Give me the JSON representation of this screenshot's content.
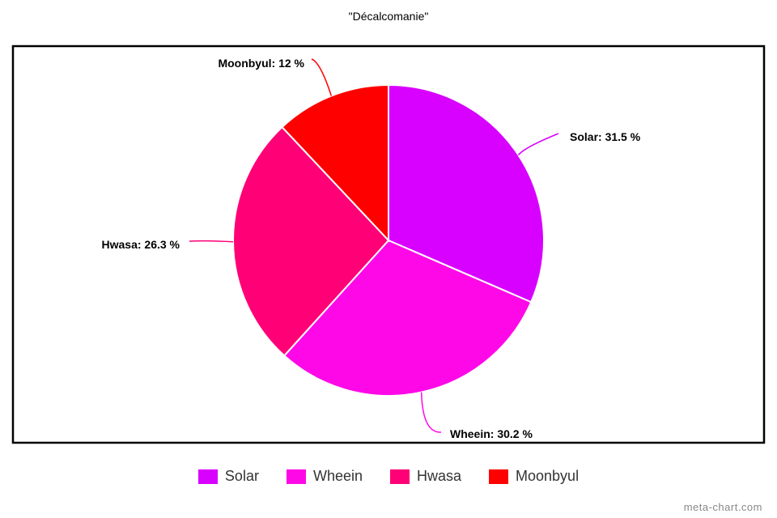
{
  "chart_data": {
    "type": "pie",
    "title": "\"Décalcomanie\"",
    "slices": [
      {
        "name": "Solar",
        "value": 31.5,
        "label": "Solar: 31.5 %",
        "color": "#d800ff"
      },
      {
        "name": "Wheein",
        "value": 30.2,
        "label": "Wheein: 30.2 %",
        "color": "#ff08e8"
      },
      {
        "name": "Hwasa",
        "value": 26.3,
        "label": "Hwasa: 26.3 %",
        "color": "#ff0077"
      },
      {
        "name": "Moonbyul",
        "value": 12,
        "label": "Moonbyul: 12 %",
        "color": "#ff0000"
      }
    ],
    "legend": {
      "position": "bottom"
    }
  },
  "watermark": "meta-chart.com"
}
